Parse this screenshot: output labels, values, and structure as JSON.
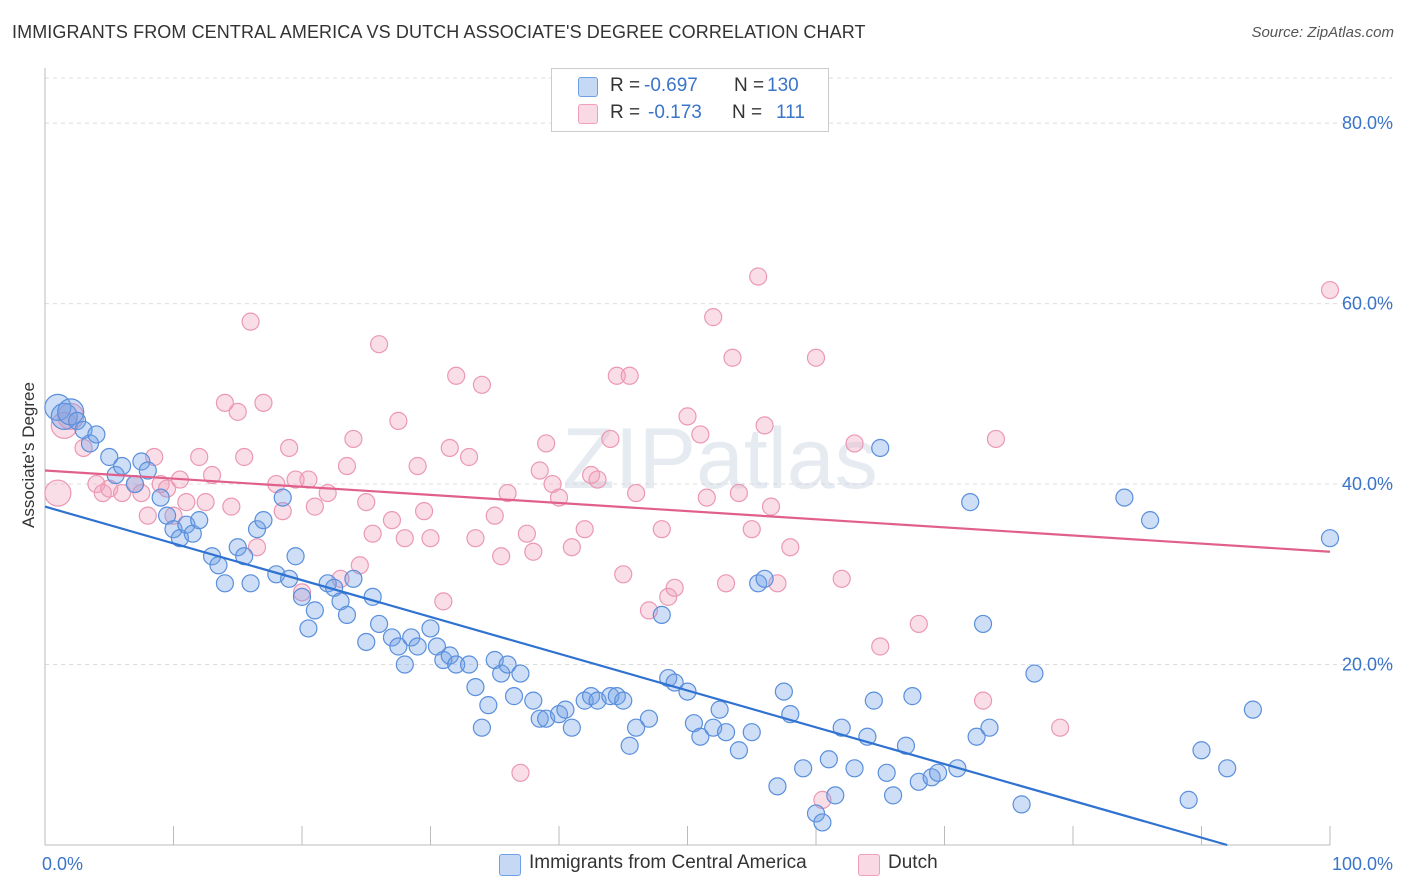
{
  "title": "IMMIGRANTS FROM CENTRAL AMERICA VS DUTCH ASSOCIATE'S DEGREE CORRELATION CHART",
  "source": "Source: ZipAtlas.com",
  "watermark": "ZIPatlas",
  "colors": {
    "blue": "#6fa0e6",
    "blue_line": "#2f72d0",
    "pink": "#f0a0ba",
    "pink_line": "#e0608a",
    "axis_text": "#3a74c9"
  },
  "legend": {
    "r_label": "R =",
    "n_label": "N =",
    "rows": [
      {
        "r": "-0.697",
        "n": "130",
        "color": "#6fa0e6"
      },
      {
        "r": "-0.173",
        "n": "111",
        "color": "#f0a0ba"
      }
    ]
  },
  "bottom_legend": [
    {
      "label": "Immigrants from Central America",
      "color": "#6fa0e6"
    },
    {
      "label": "Dutch",
      "color": "#f0a0ba"
    }
  ],
  "chart_data": {
    "type": "scatter",
    "title": "IMMIGRANTS FROM CENTRAL AMERICA VS DUTCH ASSOCIATE'S DEGREE CORRELATION CHART",
    "xlabel": "",
    "ylabel": "Associate's Degree",
    "xlim": [
      0,
      100
    ],
    "ylim": [
      0,
      85
    ],
    "x_tick_labels": [
      "0.0%",
      "100.0%"
    ],
    "y_ticks": [
      20,
      40,
      60,
      80
    ],
    "y_tick_labels": [
      "20.0%",
      "40.0%",
      "60.0%",
      "80.0%"
    ],
    "grid": true,
    "series": [
      {
        "name": "Immigrants from Central America",
        "color": "#6fa0e6",
        "trend": {
          "x0": 0,
          "y0": 37.5,
          "x1": 92,
          "y1": 0
        },
        "points": [
          [
            1,
            48.5
          ],
          [
            1.5,
            47.5
          ],
          [
            2,
            48
          ],
          [
            2.5,
            47
          ],
          [
            3,
            46
          ],
          [
            3.5,
            44.5
          ],
          [
            4,
            45.5
          ],
          [
            5,
            43
          ],
          [
            5.5,
            41
          ],
          [
            6,
            42
          ],
          [
            7,
            40
          ],
          [
            7.5,
            42.5
          ],
          [
            8,
            41.5
          ],
          [
            9,
            38.5
          ],
          [
            9.5,
            36.5
          ],
          [
            10,
            35
          ],
          [
            10.5,
            34
          ],
          [
            11,
            35.5
          ],
          [
            11.5,
            34.5
          ],
          [
            12,
            36
          ],
          [
            13,
            32
          ],
          [
            13.5,
            31
          ],
          [
            14,
            29
          ],
          [
            15,
            33
          ],
          [
            15.5,
            32
          ],
          [
            16,
            29
          ],
          [
            16.5,
            35
          ],
          [
            17,
            36
          ],
          [
            18,
            30
          ],
          [
            18.5,
            38.5
          ],
          [
            19,
            29.5
          ],
          [
            19.5,
            32
          ],
          [
            20,
            27.5
          ],
          [
            20.5,
            24
          ],
          [
            21,
            26
          ],
          [
            22,
            29
          ],
          [
            22.5,
            28.5
          ],
          [
            23,
            27
          ],
          [
            23.5,
            25.5
          ],
          [
            24,
            29.5
          ],
          [
            25,
            22.5
          ],
          [
            25.5,
            27.5
          ],
          [
            26,
            24.5
          ],
          [
            27,
            23
          ],
          [
            27.5,
            22
          ],
          [
            28,
            20
          ],
          [
            28.5,
            23
          ],
          [
            29,
            22
          ],
          [
            30,
            24
          ],
          [
            30.5,
            22
          ],
          [
            31,
            20.5
          ],
          [
            31.5,
            21
          ],
          [
            32,
            20
          ],
          [
            33,
            20
          ],
          [
            33.5,
            17.5
          ],
          [
            34,
            13
          ],
          [
            34.5,
            15.5
          ],
          [
            35,
            20.5
          ],
          [
            35.5,
            19
          ],
          [
            36,
            20
          ],
          [
            36.5,
            16.5
          ],
          [
            37,
            19
          ],
          [
            38,
            16
          ],
          [
            38.5,
            14
          ],
          [
            39,
            14
          ],
          [
            40,
            14.5
          ],
          [
            40.5,
            15
          ],
          [
            41,
            13
          ],
          [
            42,
            16
          ],
          [
            42.5,
            16.5
          ],
          [
            43,
            16
          ],
          [
            44,
            16.5
          ],
          [
            44.5,
            16.5
          ],
          [
            45,
            16
          ],
          [
            45.5,
            11
          ],
          [
            46,
            13
          ],
          [
            47,
            14
          ],
          [
            48,
            25.5
          ],
          [
            48.5,
            18.5
          ],
          [
            49,
            18
          ],
          [
            50,
            17
          ],
          [
            50.5,
            13.5
          ],
          [
            51,
            12
          ],
          [
            52,
            13
          ],
          [
            52.5,
            15
          ],
          [
            53,
            12.5
          ],
          [
            54,
            10.5
          ],
          [
            55,
            12.5
          ],
          [
            55.5,
            29
          ],
          [
            56,
            29.5
          ],
          [
            57,
            6.5
          ],
          [
            57.5,
            17
          ],
          [
            58,
            14.5
          ],
          [
            59,
            8.5
          ],
          [
            60,
            3.5
          ],
          [
            60.5,
            2.5
          ],
          [
            61,
            9.5
          ],
          [
            61.5,
            5.5
          ],
          [
            62,
            13
          ],
          [
            63,
            8.5
          ],
          [
            64,
            12
          ],
          [
            64.5,
            16
          ],
          [
            65,
            44
          ],
          [
            65.5,
            8
          ],
          [
            66,
            5.5
          ],
          [
            67,
            11
          ],
          [
            67.5,
            16.5
          ],
          [
            68,
            7
          ],
          [
            69,
            7.5
          ],
          [
            69.5,
            8
          ],
          [
            71,
            8.5
          ],
          [
            72,
            38
          ],
          [
            72.5,
            12
          ],
          [
            73,
            24.5
          ],
          [
            73.5,
            13
          ],
          [
            76,
            4.5
          ],
          [
            77,
            19
          ],
          [
            84,
            38.5
          ],
          [
            86,
            36
          ],
          [
            89,
            5
          ],
          [
            90,
            10.5
          ],
          [
            92,
            8.5
          ],
          [
            94,
            15
          ],
          [
            100,
            34
          ]
        ]
      },
      {
        "name": "Dutch",
        "color": "#f0a0ba",
        "trend": {
          "x0": 0,
          "y0": 41.5,
          "x1": 100,
          "y1": 32.5
        },
        "points": [
          [
            1,
            39
          ],
          [
            1.5,
            46.5
          ],
          [
            2,
            47.5
          ],
          [
            3,
            44
          ],
          [
            4,
            40
          ],
          [
            4.5,
            39
          ],
          [
            5,
            39.5
          ],
          [
            6,
            39
          ],
          [
            7,
            40
          ],
          [
            7.5,
            39
          ],
          [
            8,
            36.5
          ],
          [
            8.5,
            43
          ],
          [
            9,
            40
          ],
          [
            9.5,
            39.5
          ],
          [
            10,
            36.5
          ],
          [
            10.5,
            40.5
          ],
          [
            11,
            38
          ],
          [
            12,
            43
          ],
          [
            12.5,
            38
          ],
          [
            13,
            41
          ],
          [
            14,
            49
          ],
          [
            14.5,
            37.5
          ],
          [
            15,
            48
          ],
          [
            15.5,
            43
          ],
          [
            16,
            58
          ],
          [
            16.5,
            33
          ],
          [
            17,
            49
          ],
          [
            18,
            40
          ],
          [
            18.5,
            37
          ],
          [
            19,
            44
          ],
          [
            19.5,
            40.5
          ],
          [
            20,
            28
          ],
          [
            20.5,
            40.5
          ],
          [
            21,
            37.5
          ],
          [
            22,
            39
          ],
          [
            23,
            29.5
          ],
          [
            23.5,
            42
          ],
          [
            24,
            45
          ],
          [
            24.5,
            31
          ],
          [
            25,
            38
          ],
          [
            25.5,
            34.5
          ],
          [
            26,
            55.5
          ],
          [
            27,
            36
          ],
          [
            27.5,
            47
          ],
          [
            28,
            34
          ],
          [
            29,
            42
          ],
          [
            29.5,
            37
          ],
          [
            30,
            34
          ],
          [
            31,
            27
          ],
          [
            31.5,
            44
          ],
          [
            32,
            52
          ],
          [
            33,
            43
          ],
          [
            33.5,
            34
          ],
          [
            34,
            51
          ],
          [
            35,
            36.5
          ],
          [
            35.5,
            32
          ],
          [
            36,
            39
          ],
          [
            37,
            8
          ],
          [
            37.5,
            34.5
          ],
          [
            38,
            32.5
          ],
          [
            38.5,
            41.5
          ],
          [
            39,
            44.5
          ],
          [
            39.5,
            40
          ],
          [
            40,
            38.5
          ],
          [
            41,
            33
          ],
          [
            42,
            35
          ],
          [
            42.5,
            41
          ],
          [
            43,
            40.5
          ],
          [
            44,
            45
          ],
          [
            44.5,
            52
          ],
          [
            45,
            30
          ],
          [
            45.5,
            52
          ],
          [
            46,
            39
          ],
          [
            47,
            26
          ],
          [
            48,
            35
          ],
          [
            48.5,
            27.5
          ],
          [
            49,
            28.5
          ],
          [
            50,
            47.5
          ],
          [
            51,
            45.5
          ],
          [
            51.5,
            38.5
          ],
          [
            52,
            58.5
          ],
          [
            53,
            29
          ],
          [
            53.5,
            54
          ],
          [
            54,
            39
          ],
          [
            55,
            35
          ],
          [
            55.5,
            63
          ],
          [
            56,
            46.5
          ],
          [
            56.5,
            37.5
          ],
          [
            57,
            29
          ],
          [
            58,
            33
          ],
          [
            60,
            54
          ],
          [
            60.5,
            5
          ],
          [
            62,
            29.5
          ],
          [
            63,
            44.5
          ],
          [
            65,
            22
          ],
          [
            68,
            24.5
          ],
          [
            73,
            16
          ],
          [
            74,
            45
          ],
          [
            79,
            13
          ],
          [
            100,
            61.5
          ]
        ]
      }
    ]
  }
}
